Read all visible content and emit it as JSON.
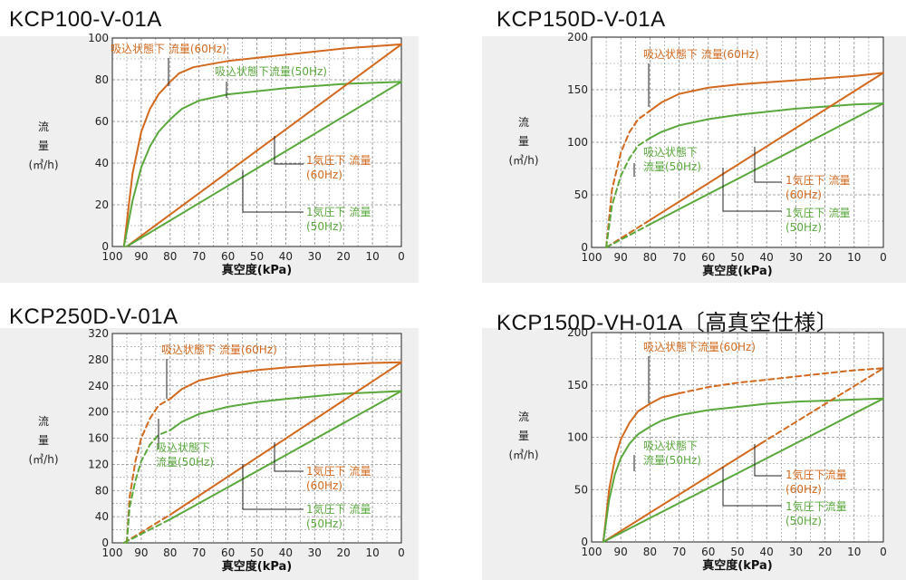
{
  "colors": {
    "orange": "#d2691e",
    "green": "#5aa83c",
    "grid": "#8a8a8a",
    "axis": "#222222",
    "background": "#efefef"
  },
  "charts": [
    {
      "title": "KCP100-V-01A",
      "ylabel": [
        "流",
        "量",
        "(㎥/h)"
      ],
      "chart_data": {
        "type": "line",
        "xlabel": "真空度(kPa)",
        "xticks": [
          "100",
          "90",
          "80",
          "70",
          "60",
          "50",
          "40",
          "30",
          "20",
          "10",
          "0"
        ],
        "yticks": [
          "0",
          "20",
          "40",
          "60",
          "80",
          "100"
        ],
        "xlim": [
          100,
          0
        ],
        "ylim": [
          0,
          100
        ],
        "grid": true,
        "series": [
          {
            "name": "吸込状態下 流量(60Hz)",
            "color": "orange",
            "style": "solid",
            "x": [
              96,
              93,
              90,
              87,
              84,
              80,
              77,
              72,
              60,
              40,
              20,
              0
            ],
            "y": [
              0,
              35,
              55,
              66,
              73,
              79,
              83,
              86,
              89,
              92,
              95,
              97
            ]
          },
          {
            "name": "吸込状態下流量(50Hz)",
            "color": "green",
            "style": "solid",
            "x": [
              96,
              93,
              90,
              87,
              84,
              80,
              76,
              70,
              60,
              40,
              20,
              0
            ],
            "y": [
              0,
              22,
              38,
              48,
              55,
              61,
              66,
              70,
              73,
              76,
              78,
              79
            ]
          },
          {
            "name": "1気圧下 流量(60Hz)",
            "color": "orange",
            "style": "solid",
            "x": [
              95,
              0
            ],
            "y": [
              0,
              97
            ]
          },
          {
            "name": "1気圧下 流量(50Hz)",
            "color": "green",
            "style": "solid",
            "x": [
              95,
              0
            ],
            "y": [
              0,
              79
            ]
          }
        ],
        "annotations": [
          {
            "lines": [
              "吸込状態下 流量(60Hz)"
            ],
            "color": "orange"
          },
          {
            "lines": [
              "吸込状態下流量(50Hz)"
            ],
            "color": "green"
          },
          {
            "lines": [
              "1気圧下 流量",
              "(60Hz)"
            ],
            "color": "orange"
          },
          {
            "lines": [
              "1気圧下 流量",
              "(50Hz)"
            ],
            "color": "green"
          }
        ]
      }
    },
    {
      "title": "KCP150D-V-01A",
      "ylabel": [
        "流",
        "量",
        "(㎥/h)"
      ],
      "chart_data": {
        "type": "line",
        "xlabel": "真空度(kPa)",
        "xticks": [
          "100",
          "90",
          "80",
          "70",
          "60",
          "50",
          "40",
          "30",
          "20",
          "10",
          "0"
        ],
        "yticks": [
          "0",
          "50",
          "100",
          "150",
          "200"
        ],
        "xlim": [
          100,
          0
        ],
        "ylim": [
          0,
          200
        ],
        "grid": true,
        "series": [
          {
            "name": "吸込状態下 流量(60Hz) dashed",
            "color": "orange",
            "style": "dashed",
            "x": [
              95,
              93,
              90,
              87,
              84,
              80
            ],
            "y": [
              0,
              55,
              90,
              110,
              122,
              130
            ]
          },
          {
            "name": "吸込状態下 流量(60Hz)",
            "color": "orange",
            "style": "solid",
            "x": [
              80,
              76,
              70,
              60,
              50,
              40,
              30,
              20,
              10,
              0
            ],
            "y": [
              130,
              138,
              146,
              152,
              155,
              157,
              159,
              161,
              163,
              166
            ]
          },
          {
            "name": "吸込状態下 流量(50Hz) dashed",
            "color": "green",
            "style": "dashed",
            "x": [
              95,
              93,
              90,
              87,
              84,
              80
            ],
            "y": [
              0,
              40,
              68,
              85,
              97,
              104
            ]
          },
          {
            "name": "吸込状態下 流量(50Hz)",
            "color": "green",
            "style": "solid",
            "x": [
              80,
              76,
              70,
              60,
              50,
              40,
              30,
              20,
              10,
              0
            ],
            "y": [
              104,
              110,
              116,
              122,
              126,
              129,
              132,
              134,
              136,
              137
            ]
          },
          {
            "name": "1気圧下 流量(60Hz) dashed",
            "color": "orange",
            "style": "dashed",
            "x": [
              95,
              80
            ],
            "y": [
              0,
              26
            ]
          },
          {
            "name": "1気圧下 流量(60Hz)",
            "color": "orange",
            "style": "solid",
            "x": [
              80,
              0
            ],
            "y": [
              26,
              166
            ]
          },
          {
            "name": "1気圧下 流量(50Hz) dashed",
            "color": "green",
            "style": "dashed",
            "x": [
              95,
              80
            ],
            "y": [
              0,
              22
            ]
          },
          {
            "name": "1気圧下 流量(50Hz)",
            "color": "green",
            "style": "solid",
            "x": [
              80,
              0
            ],
            "y": [
              22,
              137
            ]
          }
        ],
        "annotations": [
          {
            "lines": [
              "吸込状態下 流量(60Hz)"
            ],
            "color": "orange"
          },
          {
            "lines": [
              "吸込状態下",
              "流量(50Hz)"
            ],
            "color": "green"
          },
          {
            "lines": [
              "1気圧下 流量",
              "(60Hz)"
            ],
            "color": "orange"
          },
          {
            "lines": [
              "1気圧下 流量",
              "(50Hz)"
            ],
            "color": "green"
          }
        ]
      }
    },
    {
      "title": "KCP250D-V-01A",
      "ylabel": [
        "流",
        "量",
        "(㎥/h)"
      ],
      "chart_data": {
        "type": "line",
        "xlabel": "真空度(kPa)",
        "xticks": [
          "100",
          "90",
          "80",
          "70",
          "60",
          "50",
          "40",
          "30",
          "20",
          "10",
          "0"
        ],
        "yticks": [
          "0",
          "40",
          "80",
          "120",
          "160",
          "200",
          "240",
          "280",
          "320"
        ],
        "xlim": [
          100,
          0
        ],
        "ylim": [
          0,
          320
        ],
        "grid": true,
        "series": [
          {
            "name": "吸込状態下 流量(60Hz) dashed",
            "color": "orange",
            "style": "dashed",
            "x": [
              95,
              94,
              92,
              90,
              87,
              84,
              80
            ],
            "y": [
              0,
              70,
              125,
              160,
              190,
              210,
              220
            ]
          },
          {
            "name": "吸込状態下 流量(60Hz)",
            "color": "orange",
            "style": "solid",
            "x": [
              80,
              76,
              70,
              60,
              50,
              40,
              30,
              20,
              10,
              0
            ],
            "y": [
              220,
              235,
              248,
              258,
              264,
              268,
              271,
              273,
              275,
              276
            ]
          },
          {
            "name": "吸込状態下 流量(50Hz) dashed",
            "color": "green",
            "style": "dashed",
            "x": [
              95,
              94,
              92,
              90,
              87,
              84,
              80
            ],
            "y": [
              0,
              55,
              95,
              125,
              150,
              165,
              172
            ]
          },
          {
            "name": "吸込状態下 流量(50Hz)",
            "color": "green",
            "style": "solid",
            "x": [
              80,
              76,
              70,
              60,
              50,
              40,
              30,
              20,
              10,
              0
            ],
            "y": [
              172,
              185,
              197,
              208,
              215,
              220,
              224,
              228,
              230,
              232
            ]
          },
          {
            "name": "1気圧下 流量(60Hz) dashed",
            "color": "orange",
            "style": "dashed",
            "x": [
              96,
              80
            ],
            "y": [
              0,
              43
            ]
          },
          {
            "name": "1気圧下 流量(60Hz)",
            "color": "orange",
            "style": "solid",
            "x": [
              80,
              0
            ],
            "y": [
              43,
              276
            ]
          },
          {
            "name": "1気圧下 流量(50Hz) dashed",
            "color": "green",
            "style": "dashed",
            "x": [
              96,
              80
            ],
            "y": [
              0,
              36
            ]
          },
          {
            "name": "1気圧下 流量(50Hz)",
            "color": "green",
            "style": "solid",
            "x": [
              80,
              0
            ],
            "y": [
              36,
              232
            ]
          }
        ],
        "annotations": [
          {
            "lines": [
              "吸込状態下 流量(60Hz)"
            ],
            "color": "orange"
          },
          {
            "lines": [
              "吸込状態下",
              "流量(50Hz)"
            ],
            "color": "green"
          },
          {
            "lines": [
              "1気圧下 流量",
              "(60Hz)"
            ],
            "color": "orange"
          },
          {
            "lines": [
              "1気圧下 流量",
              "(50Hz)"
            ],
            "color": "green"
          }
        ]
      }
    },
    {
      "title": "KCP150D-VH-01A〔高真空仕様〕",
      "ylabel": [
        "流",
        "量",
        "(㎥/h)"
      ],
      "chart_data": {
        "type": "line",
        "xlabel": "真空度(kPa)",
        "xticks": [
          "100",
          "90",
          "80",
          "70",
          "60",
          "50",
          "40",
          "30",
          "20",
          "10",
          "0"
        ],
        "yticks": [
          "0",
          "50",
          "100",
          "150",
          "200"
        ],
        "xlim": [
          100,
          0
        ],
        "ylim": [
          0,
          200
        ],
        "grid": true,
        "series": [
          {
            "name": "吸込状態下流量(60Hz)",
            "color": "orange",
            "style": "solid",
            "x": [
              96,
              94,
              92,
              90,
              87,
              84,
              80,
              76,
              70
            ],
            "y": [
              0,
              50,
              80,
              98,
              114,
              125,
              132,
              138,
              142
            ]
          },
          {
            "name": "吸込状態下流量(60Hz) dashed",
            "color": "orange",
            "style": "dashed",
            "x": [
              70,
              60,
              50,
              40,
              30,
              20,
              10,
              0
            ],
            "y": [
              142,
              148,
              152,
              155,
              158,
              161,
              164,
              166
            ]
          },
          {
            "name": "吸込状態下 流量(50Hz)",
            "color": "green",
            "style": "solid",
            "x": [
              96,
              94,
              92,
              90,
              87,
              84,
              80,
              76,
              70,
              60,
              50,
              40,
              30,
              20,
              10,
              0
            ],
            "y": [
              0,
              40,
              65,
              80,
              94,
              103,
              110,
              116,
              121,
              126,
              129,
              132,
              134,
              135,
              136,
              137
            ]
          },
          {
            "name": "1気圧下流量(60Hz)",
            "color": "orange",
            "style": "solid",
            "x": [
              96,
              42
            ],
            "y": [
              0,
              94
            ]
          },
          {
            "name": "1気圧下流量(60Hz) dashed",
            "color": "orange",
            "style": "dashed",
            "x": [
              42,
              0
            ],
            "y": [
              94,
              166
            ]
          },
          {
            "name": "1気圧下流量(50Hz)",
            "color": "green",
            "style": "solid",
            "x": [
              96,
              0
            ],
            "y": [
              0,
              137
            ]
          }
        ],
        "annotations": [
          {
            "lines": [
              "吸込状態下流量(60Hz)"
            ],
            "color": "orange"
          },
          {
            "lines": [
              "吸込状態下",
              "流量(50Hz)"
            ],
            "color": "green"
          },
          {
            "lines": [
              "1気圧下流量",
              "(60Hz)"
            ],
            "color": "orange"
          },
          {
            "lines": [
              "1気圧下流量",
              "(50Hz)"
            ],
            "color": "green"
          }
        ]
      }
    }
  ]
}
